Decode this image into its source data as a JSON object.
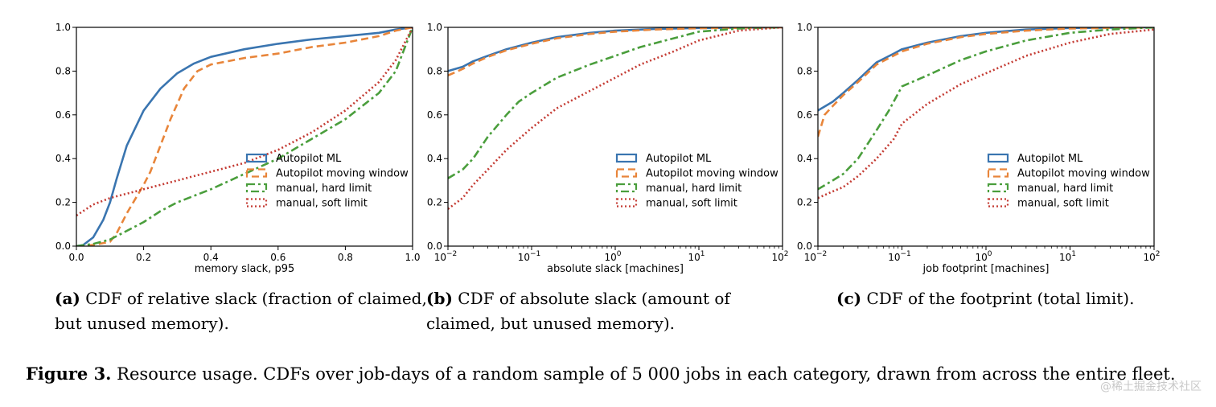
{
  "figure_caption": {
    "label": "Figure 3.",
    "text": " Resource usage. CDFs over job-days of a random sample of 5 000 jobs in each category, drawn from across the entire fleet."
  },
  "watermark": "@稀土掘金技术社区",
  "colors": {
    "autopilot_ml": "#3a75b0",
    "autopilot_mw": "#e8853a",
    "manual_hard": "#4a9e3c",
    "manual_soft": "#c43b33"
  },
  "chart_data": [
    {
      "id": "a",
      "type": "line",
      "xscale": "linear",
      "xlabel": "memory slack, p95",
      "ylabel": "",
      "xlim": [
        0.0,
        1.0
      ],
      "ylim": [
        0.0,
        1.0
      ],
      "xticks": [
        "0.0",
        "0.2",
        "0.4",
        "0.6",
        "0.8",
        "1.0"
      ],
      "yticks": [
        "0.0",
        "0.2",
        "0.4",
        "0.6",
        "0.8",
        "1.0"
      ],
      "caption_label": "(a)",
      "caption_text": " CDF of relative slack (fraction of claimed, but unused memory).",
      "series": [
        {
          "name": "Autopilot ML",
          "style": "solid",
          "points": [
            [
              0,
              0
            ],
            [
              0.02,
              0.005
            ],
            [
              0.05,
              0.04
            ],
            [
              0.08,
              0.12
            ],
            [
              0.1,
              0.2
            ],
            [
              0.12,
              0.31
            ],
            [
              0.15,
              0.46
            ],
            [
              0.2,
              0.62
            ],
            [
              0.25,
              0.72
            ],
            [
              0.3,
              0.79
            ],
            [
              0.35,
              0.835
            ],
            [
              0.4,
              0.865
            ],
            [
              0.5,
              0.9
            ],
            [
              0.6,
              0.925
            ],
            [
              0.7,
              0.945
            ],
            [
              0.8,
              0.96
            ],
            [
              0.9,
              0.975
            ],
            [
              0.95,
              0.99
            ],
            [
              1,
              1
            ]
          ]
        },
        {
          "name": "Autopilot moving window",
          "style": "dashed",
          "points": [
            [
              0,
              0
            ],
            [
              0.05,
              0.005
            ],
            [
              0.1,
              0.02
            ],
            [
              0.12,
              0.06
            ],
            [
              0.15,
              0.15
            ],
            [
              0.2,
              0.28
            ],
            [
              0.22,
              0.34
            ],
            [
              0.25,
              0.46
            ],
            [
              0.28,
              0.58
            ],
            [
              0.32,
              0.72
            ],
            [
              0.36,
              0.8
            ],
            [
              0.4,
              0.83
            ],
            [
              0.5,
              0.86
            ],
            [
              0.6,
              0.88
            ],
            [
              0.7,
              0.91
            ],
            [
              0.8,
              0.93
            ],
            [
              0.9,
              0.96
            ],
            [
              0.95,
              0.985
            ],
            [
              1,
              1
            ]
          ]
        },
        {
          "name": "manual, hard limit",
          "style": "dashdot",
          "points": [
            [
              0,
              0
            ],
            [
              0.05,
              0.01
            ],
            [
              0.1,
              0.03
            ],
            [
              0.15,
              0.07
            ],
            [
              0.2,
              0.11
            ],
            [
              0.25,
              0.16
            ],
            [
              0.3,
              0.2
            ],
            [
              0.4,
              0.26
            ],
            [
              0.5,
              0.33
            ],
            [
              0.6,
              0.4
            ],
            [
              0.7,
              0.49
            ],
            [
              0.8,
              0.58
            ],
            [
              0.9,
              0.7
            ],
            [
              0.95,
              0.8
            ],
            [
              1,
              1
            ]
          ]
        },
        {
          "name": "manual, soft limit",
          "style": "dotted",
          "points": [
            [
              0,
              0.14
            ],
            [
              0.05,
              0.19
            ],
            [
              0.1,
              0.22
            ],
            [
              0.2,
              0.26
            ],
            [
              0.3,
              0.3
            ],
            [
              0.4,
              0.34
            ],
            [
              0.5,
              0.38
            ],
            [
              0.6,
              0.44
            ],
            [
              0.7,
              0.52
            ],
            [
              0.8,
              0.62
            ],
            [
              0.9,
              0.75
            ],
            [
              0.95,
              0.85
            ],
            [
              1,
              1
            ]
          ]
        }
      ],
      "legend_position": "lower-right"
    },
    {
      "id": "b",
      "type": "line",
      "xscale": "log",
      "xlabel": "absolute slack [machines]",
      "ylabel": "",
      "xlim": [
        0.01,
        100
      ],
      "ylim": [
        0.0,
        1.0
      ],
      "xticks": [
        {
          "base": "10",
          "exp": "−2"
        },
        {
          "base": "10",
          "exp": "−1"
        },
        {
          "base": "10",
          "exp": "0"
        },
        {
          "base": "10",
          "exp": "1"
        },
        {
          "base": "10",
          "exp": "2"
        }
      ],
      "yticks": [
        "0.0",
        "0.2",
        "0.4",
        "0.6",
        "0.8",
        "1.0"
      ],
      "caption_label": "(b)",
      "caption_text": " CDF of absolute slack (amount of claimed, but unused memory).",
      "series": [
        {
          "name": "Autopilot ML",
          "style": "solid",
          "points": [
            [
              0.01,
              0.8
            ],
            [
              0.015,
              0.82
            ],
            [
              0.02,
              0.845
            ],
            [
              0.03,
              0.87
            ],
            [
              0.05,
              0.9
            ],
            [
              0.1,
              0.93
            ],
            [
              0.2,
              0.955
            ],
            [
              0.5,
              0.975
            ],
            [
              1,
              0.985
            ],
            [
              3,
              0.993
            ],
            [
              10,
              0.997
            ],
            [
              100,
              1
            ]
          ]
        },
        {
          "name": "Autopilot moving window",
          "style": "dashed",
          "points": [
            [
              0.01,
              0.78
            ],
            [
              0.015,
              0.81
            ],
            [
              0.02,
              0.835
            ],
            [
              0.03,
              0.865
            ],
            [
              0.05,
              0.895
            ],
            [
              0.1,
              0.925
            ],
            [
              0.2,
              0.95
            ],
            [
              0.5,
              0.97
            ],
            [
              1,
              0.98
            ],
            [
              3,
              0.99
            ],
            [
              10,
              0.996
            ],
            [
              100,
              1
            ]
          ]
        },
        {
          "name": "manual, hard limit",
          "style": "dashdot",
          "points": [
            [
              0.01,
              0.31
            ],
            [
              0.015,
              0.35
            ],
            [
              0.02,
              0.4
            ],
            [
              0.03,
              0.5
            ],
            [
              0.05,
              0.6
            ],
            [
              0.07,
              0.66
            ],
            [
              0.1,
              0.7
            ],
            [
              0.2,
              0.77
            ],
            [
              0.5,
              0.83
            ],
            [
              1,
              0.87
            ],
            [
              2,
              0.91
            ],
            [
              5,
              0.95
            ],
            [
              10,
              0.98
            ],
            [
              30,
              0.995
            ],
            [
              100,
              1
            ]
          ]
        },
        {
          "name": "manual, soft limit",
          "style": "dotted",
          "points": [
            [
              0.01,
              0.17
            ],
            [
              0.015,
              0.22
            ],
            [
              0.02,
              0.28
            ],
            [
              0.03,
              0.35
            ],
            [
              0.05,
              0.44
            ],
            [
              0.1,
              0.54
            ],
            [
              0.2,
              0.63
            ],
            [
              0.5,
              0.71
            ],
            [
              1,
              0.77
            ],
            [
              2,
              0.83
            ],
            [
              5,
              0.89
            ],
            [
              10,
              0.94
            ],
            [
              30,
              0.985
            ],
            [
              100,
              1
            ]
          ]
        }
      ],
      "legend_position": "lower-right"
    },
    {
      "id": "c",
      "type": "line",
      "xscale": "log",
      "xlabel": "job footprint [machines]",
      "ylabel": "",
      "xlim": [
        0.01,
        100
      ],
      "ylim": [
        0.0,
        1.0
      ],
      "xticks": [
        {
          "base": "10",
          "exp": "−2"
        },
        {
          "base": "10",
          "exp": "−1"
        },
        {
          "base": "10",
          "exp": "0"
        },
        {
          "base": "10",
          "exp": "1"
        },
        {
          "base": "10",
          "exp": "2"
        }
      ],
      "yticks": [
        "0.0",
        "0.2",
        "0.4",
        "0.6",
        "0.8",
        "1.0"
      ],
      "caption_label": "(c)",
      "caption_text": " CDF of the footprint (total limit).",
      "series": [
        {
          "name": "Autopilot ML",
          "style": "solid",
          "points": [
            [
              0.01,
              0.62
            ],
            [
              0.015,
              0.66
            ],
            [
              0.02,
              0.7
            ],
            [
              0.03,
              0.76
            ],
            [
              0.05,
              0.84
            ],
            [
              0.08,
              0.88
            ],
            [
              0.1,
              0.9
            ],
            [
              0.2,
              0.93
            ],
            [
              0.5,
              0.96
            ],
            [
              1,
              0.975
            ],
            [
              3,
              0.99
            ],
            [
              10,
              0.997
            ],
            [
              100,
              1
            ]
          ]
        },
        {
          "name": "Autopilot moving window",
          "style": "dashed",
          "points": [
            [
              0.01,
              0.5
            ],
            [
              0.012,
              0.6
            ],
            [
              0.015,
              0.64
            ],
            [
              0.02,
              0.69
            ],
            [
              0.03,
              0.75
            ],
            [
              0.05,
              0.83
            ],
            [
              0.1,
              0.89
            ],
            [
              0.2,
              0.925
            ],
            [
              0.5,
              0.955
            ],
            [
              1,
              0.97
            ],
            [
              3,
              0.985
            ],
            [
              10,
              0.995
            ],
            [
              100,
              1
            ]
          ]
        },
        {
          "name": "manual, hard limit",
          "style": "dashdot",
          "points": [
            [
              0.01,
              0.26
            ],
            [
              0.015,
              0.3
            ],
            [
              0.02,
              0.33
            ],
            [
              0.03,
              0.4
            ],
            [
              0.05,
              0.53
            ],
            [
              0.07,
              0.62
            ],
            [
              0.1,
              0.73
            ],
            [
              0.2,
              0.78
            ],
            [
              0.5,
              0.85
            ],
            [
              1,
              0.89
            ],
            [
              3,
              0.94
            ],
            [
              10,
              0.975
            ],
            [
              30,
              0.99
            ],
            [
              100,
              1
            ]
          ]
        },
        {
          "name": "manual, soft limit",
          "style": "dotted",
          "points": [
            [
              0.01,
              0.22
            ],
            [
              0.015,
              0.25
            ],
            [
              0.02,
              0.27
            ],
            [
              0.03,
              0.32
            ],
            [
              0.05,
              0.4
            ],
            [
              0.08,
              0.49
            ],
            [
              0.1,
              0.56
            ],
            [
              0.2,
              0.65
            ],
            [
              0.5,
              0.74
            ],
            [
              1,
              0.79
            ],
            [
              3,
              0.87
            ],
            [
              10,
              0.93
            ],
            [
              30,
              0.97
            ],
            [
              100,
              0.99
            ]
          ]
        }
      ],
      "legend_position": "lower-right"
    }
  ]
}
